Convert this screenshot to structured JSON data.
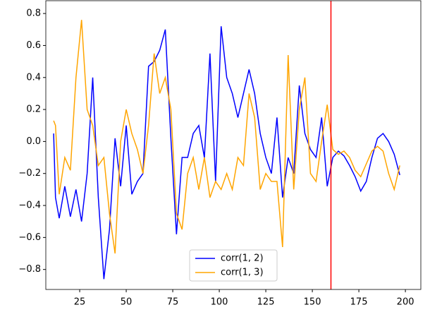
{
  "chart_data": {
    "type": "line",
    "x": [
      11,
      12,
      14,
      17,
      20,
      23,
      26,
      29,
      32,
      35,
      38,
      41,
      44,
      47,
      50,
      53,
      56,
      59,
      62,
      65,
      68,
      71,
      74,
      77,
      80,
      83,
      86,
      89,
      92,
      95,
      98,
      101,
      104,
      107,
      110,
      113,
      116,
      119,
      122,
      125,
      128,
      131,
      134,
      137,
      140,
      143,
      146,
      149,
      152,
      155,
      158,
      161,
      164,
      167,
      170,
      173,
      176,
      179,
      182,
      185,
      188,
      191,
      194,
      197
    ],
    "series": [
      {
        "name": "corr(1, 2)",
        "color": "blue",
        "values": [
          0.05,
          -0.35,
          -0.48,
          -0.28,
          -0.47,
          -0.3,
          -0.5,
          -0.2,
          0.4,
          -0.35,
          -0.86,
          -0.55,
          0.02,
          -0.28,
          0.1,
          -0.33,
          -0.25,
          -0.2,
          0.47,
          0.5,
          0.57,
          0.7,
          0.02,
          -0.58,
          -0.1,
          -0.1,
          0.05,
          0.1,
          -0.1,
          0.55,
          -0.25,
          0.72,
          0.4,
          0.3,
          0.15,
          0.3,
          0.45,
          0.3,
          0.05,
          -0.1,
          -0.2,
          0.15,
          -0.35,
          -0.1,
          -0.2,
          0.35,
          0.05,
          -0.05,
          -0.1,
          0.15,
          -0.28,
          -0.1,
          -0.06,
          -0.09,
          -0.15,
          -0.22,
          -0.31,
          -0.25,
          -0.1,
          0.02,
          0.05,
          0.0,
          -0.08,
          -0.21
        ]
      },
      {
        "name": "corr(1, 3)",
        "color": "orange",
        "values": [
          0.13,
          0.1,
          -0.33,
          -0.1,
          -0.18,
          0.4,
          0.76,
          0.2,
          0.1,
          -0.15,
          -0.1,
          -0.45,
          -0.7,
          0.0,
          0.2,
          0.05,
          -0.05,
          -0.2,
          0.1,
          0.55,
          0.3,
          0.4,
          0.2,
          -0.45,
          -0.55,
          -0.2,
          -0.1,
          -0.3,
          -0.1,
          -0.35,
          -0.25,
          -0.3,
          -0.2,
          -0.3,
          -0.1,
          -0.15,
          0.3,
          0.15,
          -0.3,
          -0.2,
          -0.25,
          -0.25,
          -0.66,
          0.54,
          -0.3,
          0.2,
          0.4,
          -0.2,
          -0.25,
          0.0,
          0.23,
          -0.05,
          -0.08,
          -0.06,
          -0.1,
          -0.18,
          -0.22,
          -0.14,
          -0.06,
          -0.03,
          -0.06,
          -0.2,
          -0.3,
          -0.15
        ]
      }
    ],
    "vline": {
      "x": 160,
      "color": "red"
    },
    "xlim": [
      6.8,
      208.3
    ],
    "xticks": [
      25,
      50,
      75,
      100,
      125,
      150,
      175,
      200
    ],
    "ylim": [
      -0.925,
      0.88
    ],
    "yticks": [
      {
        "value": -0.8,
        "label": "−0.8"
      },
      {
        "value": -0.6,
        "label": "−0.6"
      },
      {
        "value": -0.4,
        "label": "−0.4"
      },
      {
        "value": -0.2,
        "label": "−0.2"
      },
      {
        "value": 0,
        "label": "0.0"
      },
      0.2,
      0.4,
      0.6,
      0.8
    ],
    "legend": "lower center"
  }
}
